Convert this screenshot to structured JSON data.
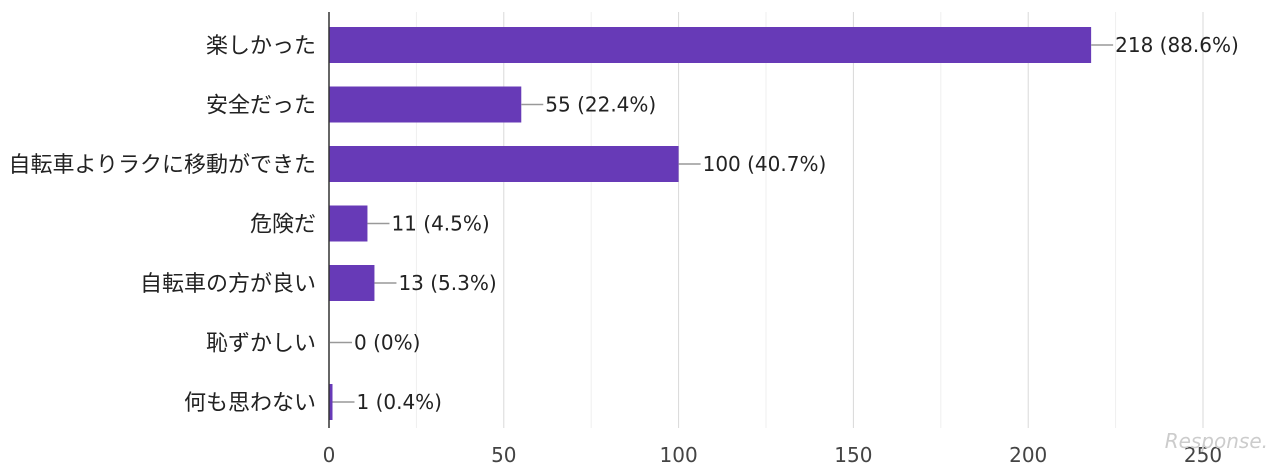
{
  "chart_data": {
    "type": "bar",
    "orientation": "horizontal",
    "categories": [
      "楽しかった",
      "安全だった",
      "自転車よりラクに移動ができた",
      "危険だ",
      "自転車の方が良い",
      "恥ずかしい",
      "何も思わない"
    ],
    "values": [
      218,
      55,
      100,
      11,
      13,
      0,
      1
    ],
    "data_labels": [
      "218 (88.6%)",
      "55 (22.4%)",
      "100 (40.7%)",
      "11 (4.5%)",
      "13 (5.3%)",
      "0 (0%)",
      "1 (0.4%)"
    ],
    "xlim": [
      0,
      250
    ],
    "xticks": [
      0,
      50,
      100,
      150,
      200,
      250
    ],
    "grid": true,
    "bar_color": "#673ab7",
    "title": "",
    "xlabel": "",
    "ylabel": ""
  },
  "watermark": "Response."
}
